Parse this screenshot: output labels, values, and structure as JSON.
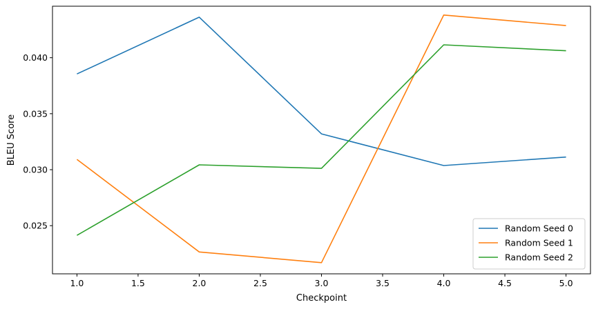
{
  "chart_data": {
    "type": "line",
    "title": "",
    "xlabel": "Checkpoint",
    "ylabel": "BLEU Score",
    "xlim": [
      0.8,
      5.2
    ],
    "ylim": [
      0.0207,
      0.0446
    ],
    "xticks": [
      1.0,
      1.5,
      2.0,
      2.5,
      3.0,
      3.5,
      4.0,
      4.5,
      5.0
    ],
    "xtick_labels": [
      "1.0",
      "1.5",
      "2.0",
      "2.5",
      "3.0",
      "3.5",
      "4.0",
      "4.5",
      "5.0"
    ],
    "yticks": [
      0.025,
      0.03,
      0.035,
      0.04
    ],
    "ytick_labels": [
      "0.025",
      "0.030",
      "0.035",
      "0.040"
    ],
    "grid": false,
    "legend_position": "bottom-right",
    "x": [
      1,
      2,
      3,
      4,
      5
    ],
    "series": [
      {
        "name": "Random Seed 0",
        "color": "#1f77b4",
        "values": [
          0.03855,
          0.04362,
          0.0332,
          0.03037,
          0.03113
        ]
      },
      {
        "name": "Random Seed 1",
        "color": "#ff7f0e",
        "values": [
          0.03092,
          0.02265,
          0.0217,
          0.04381,
          0.04287
        ]
      },
      {
        "name": "Random Seed 2",
        "color": "#2ca02c",
        "values": [
          0.02414,
          0.03043,
          0.03012,
          0.04115,
          0.04062
        ]
      }
    ]
  }
}
